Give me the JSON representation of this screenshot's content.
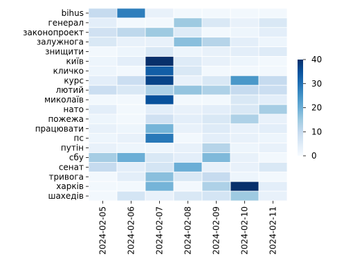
{
  "chart_data": {
    "type": "heatmap",
    "x": [
      "2024-02-05",
      "2024-02-06",
      "2024-02-07",
      "2024-02-08",
      "2024-02-09",
      "2024-02-10",
      "2024-02-11"
    ],
    "y": [
      "bihus",
      "генерал",
      "законопроект",
      "залужнога",
      "знищити",
      "київ",
      "кличко",
      "курс",
      "лютий",
      "миколаїв",
      "нато",
      "пожежа",
      "працювати",
      "пс",
      "путін",
      "сбу",
      "сенат",
      "тривога",
      "харків",
      "шахедів"
    ],
    "values": [
      [
        10,
        28,
        3,
        1,
        1,
        1,
        1
      ],
      [
        4,
        1,
        1,
        15,
        6,
        3,
        6
      ],
      [
        8,
        11,
        15,
        5,
        1,
        2,
        4
      ],
      [
        6,
        3,
        3,
        17,
        12,
        4,
        2
      ],
      [
        1,
        2,
        6,
        2,
        3,
        4,
        5
      ],
      [
        2,
        4,
        40,
        5,
        3,
        2,
        1
      ],
      [
        2,
        1,
        33,
        6,
        1,
        1,
        1
      ],
      [
        4,
        9,
        37,
        3,
        6,
        24,
        10
      ],
      [
        9,
        6,
        13,
        16,
        13,
        10,
        9
      ],
      [
        1,
        1,
        35,
        1,
        1,
        6,
        4
      ],
      [
        4,
        1,
        4,
        3,
        4,
        6,
        14
      ],
      [
        2,
        1,
        8,
        4,
        6,
        13,
        3
      ],
      [
        3,
        2,
        19,
        3,
        5,
        3,
        4
      ],
      [
        2,
        3,
        29,
        1,
        4,
        3,
        2
      ],
      [
        3,
        2,
        2,
        3,
        12,
        2,
        3
      ],
      [
        14,
        20,
        6,
        4,
        18,
        3,
        1
      ],
      [
        10,
        4,
        7,
        20,
        3,
        3,
        6
      ],
      [
        1,
        4,
        17,
        6,
        10,
        2,
        1
      ],
      [
        1,
        1,
        19,
        1,
        13,
        40,
        4
      ],
      [
        1,
        7,
        3,
        6,
        7,
        15,
        3
      ]
    ],
    "colorbar": {
      "min": 0,
      "max": 40,
      "ticks": [
        0,
        10,
        20,
        30,
        40
      ]
    },
    "colormap": "Blues",
    "title": "",
    "xlabel": "",
    "ylabel": ""
  }
}
